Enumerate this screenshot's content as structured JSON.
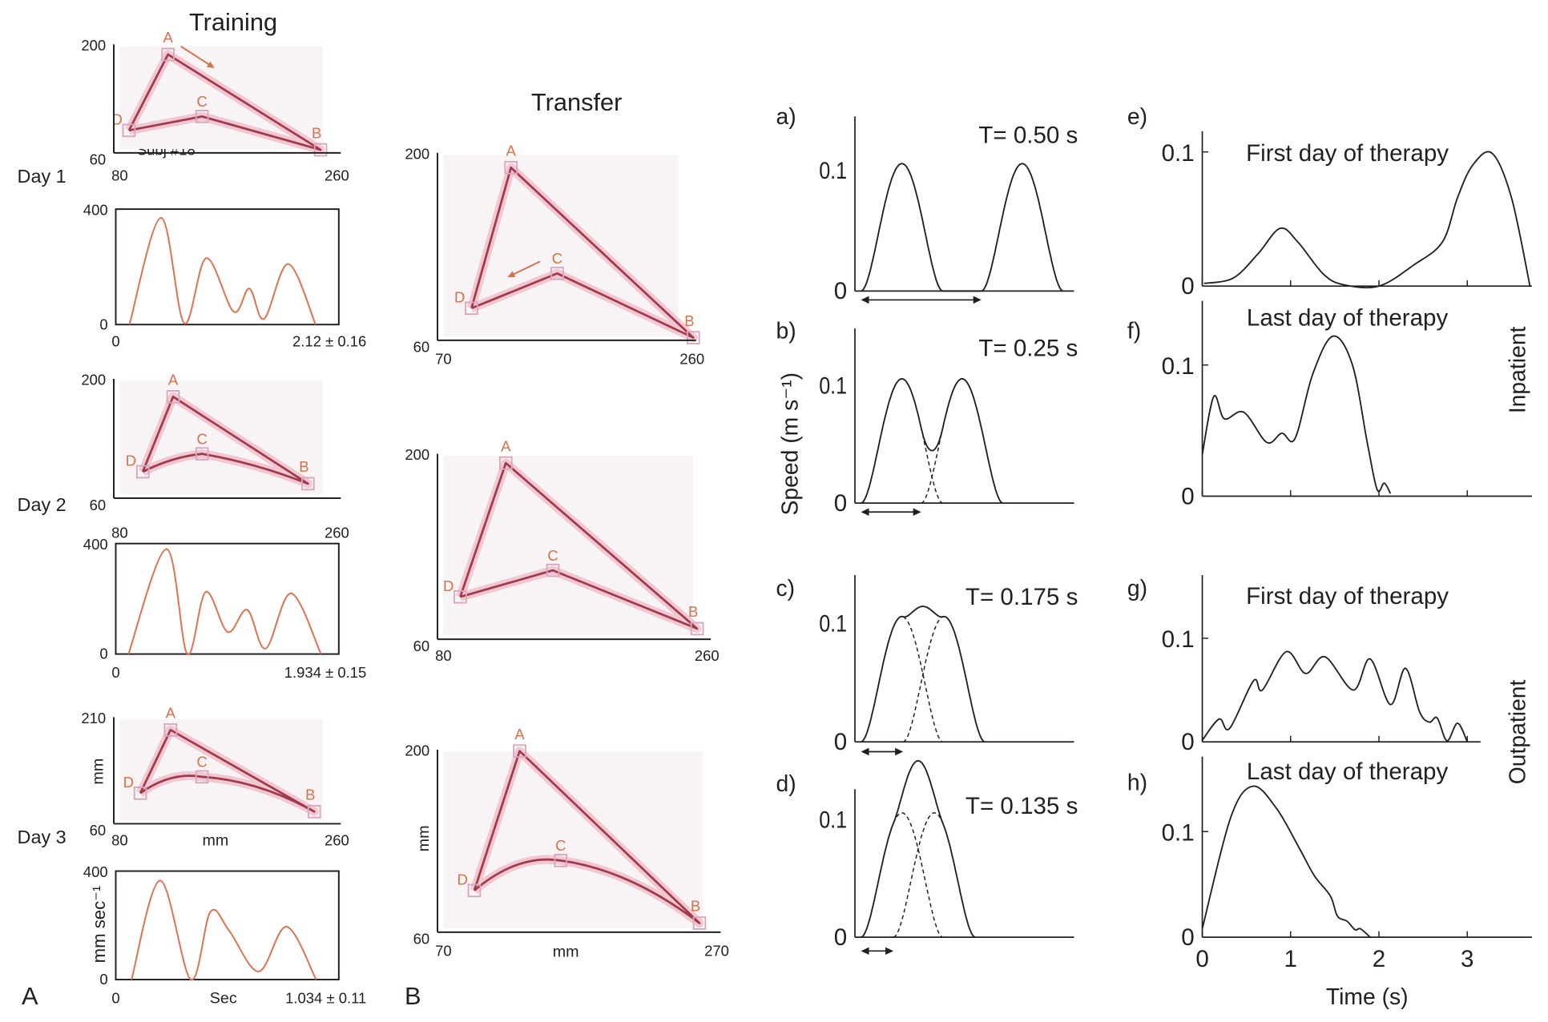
{
  "figure": {
    "training_title": "Training",
    "transfer_title": "Transfer",
    "panel_A": "A",
    "panel_B": "B",
    "day_labels": [
      "Day 1",
      "Day 2",
      "Day 3"
    ],
    "subject_label": "Subj #18",
    "mm_label": "mm",
    "speed_units_label": "mm sec⁻¹",
    "sec_label": "Sec",
    "speed_ylabel": "Speed (m s⁻¹)",
    "time_xlabel": "Time (s)",
    "inpatient_label": "Inpatient",
    "outpatient_label": "Outpatient"
  },
  "colors": {
    "trajectory": "#a03a4a",
    "trajectory_glow": "#eba2b4",
    "velocity": "#e07050",
    "point_label": "#d9704a",
    "ink": "#231f20"
  },
  "chart_data": [
    {
      "id": "training-day1-trajectory",
      "type": "line",
      "group": "Training",
      "day": "Day 1",
      "xlim": [
        80,
        260
      ],
      "ylim": [
        60,
        200
      ],
      "xticks": [
        80,
        260
      ],
      "yticks": [
        60,
        200
      ],
      "points": {
        "A": [
          123,
          187
        ],
        "B": [
          244,
          64
        ],
        "C": [
          150,
          107
        ],
        "D": [
          92,
          89
        ]
      },
      "order": [
        "D",
        "A",
        "B",
        "C",
        "D"
      ],
      "direction": "A-to-B"
    },
    {
      "id": "training-day1-speed",
      "type": "line",
      "xlim": [
        0,
        2.12
      ],
      "ylim": [
        0,
        400
      ],
      "xticks": [
        0
      ],
      "yticks": [
        0,
        400
      ],
      "readout": "2.12 ± 0.16",
      "x": [
        0.13,
        0.43,
        0.65,
        0.86,
        1.12,
        1.27,
        1.41,
        1.64,
        1.9
      ],
      "y": [
        0,
        370,
        5,
        230,
        45,
        125,
        20,
        210,
        0
      ]
    },
    {
      "id": "training-day2-trajectory",
      "type": "line",
      "group": "Training",
      "day": "Day 2",
      "xlim": [
        80,
        260
      ],
      "ylim": [
        60,
        200
      ],
      "xticks": [
        80,
        260
      ],
      "yticks": [
        60,
        200
      ],
      "points": {
        "A": [
          127,
          179
        ],
        "B": [
          234,
          77
        ],
        "C": [
          150,
          112
        ],
        "D": [
          103,
          91
        ]
      },
      "order": [
        "D",
        "A",
        "B",
        "C",
        "D"
      ]
    },
    {
      "id": "training-day2-speed",
      "type": "line",
      "xlim": [
        0,
        1.934
      ],
      "ylim": [
        0,
        400
      ],
      "xticks": [
        0
      ],
      "yticks": [
        0,
        400
      ],
      "readout": "1.934 ± 0.15",
      "x": [
        0.11,
        0.44,
        0.62,
        0.78,
        0.97,
        1.14,
        1.3,
        1.52,
        1.78
      ],
      "y": [
        0,
        380,
        0,
        225,
        80,
        160,
        20,
        220,
        0
      ]
    },
    {
      "id": "training-day3-trajectory",
      "type": "line",
      "group": "Training",
      "day": "Day 3",
      "xlim": [
        80,
        260
      ],
      "ylim": [
        60,
        210
      ],
      "xticks": [
        80,
        260
      ],
      "yticks": [
        60,
        210
      ],
      "xlabel": "mm",
      "ylabel": "mm",
      "points": {
        "A": [
          125,
          192
        ],
        "B": [
          239,
          77
        ],
        "C": [
          150,
          126
        ],
        "D": [
          101,
          103
        ]
      },
      "order": [
        "D",
        "A",
        "B",
        "C",
        "D"
      ]
    },
    {
      "id": "training-day3-speed",
      "type": "line",
      "xlim": [
        0,
        1.034
      ],
      "ylim": [
        0,
        400
      ],
      "xticks": [
        0
      ],
      "yticks": [
        0,
        400
      ],
      "readout": "1.034 ± 0.11",
      "xlabel": "Sec",
      "ylabel": "mm sec⁻¹",
      "x": [
        0.073,
        0.206,
        0.348,
        0.439,
        0.526,
        0.663,
        0.792,
        0.929
      ],
      "y": [
        0,
        365,
        0,
        250,
        180,
        30,
        195,
        0
      ]
    },
    {
      "id": "transfer-1-trajectory",
      "type": "line",
      "group": "Transfer",
      "xlim": [
        70,
        260
      ],
      "ylim": [
        60,
        200
      ],
      "xticks": [
        70,
        260
      ],
      "yticks": [
        60,
        200
      ],
      "points": {
        "A": [
          124,
          189
        ],
        "B": [
          258,
          62
        ],
        "C": [
          158,
          110
        ],
        "D": [
          95,
          84
        ]
      },
      "order": [
        "D",
        "A",
        "B",
        "C",
        "D"
      ],
      "direction": "C-to-D"
    },
    {
      "id": "transfer-2-trajectory",
      "type": "line",
      "group": "Transfer",
      "xlim": [
        80,
        260
      ],
      "ylim": [
        60,
        200
      ],
      "xticks": [
        80,
        260
      ],
      "yticks": [
        60,
        200
      ],
      "points": {
        "A": [
          125,
          193
        ],
        "B": [
          251,
          68
        ],
        "C": [
          156,
          112
        ],
        "D": [
          95,
          92
        ]
      },
      "order": [
        "D",
        "A",
        "B",
        "C",
        "D"
      ]
    },
    {
      "id": "transfer-3-trajectory",
      "type": "line",
      "group": "Transfer",
      "xlim": [
        70,
        270
      ],
      "ylim": [
        60,
        200
      ],
      "xticks": [
        70,
        270
      ],
      "yticks": [
        60,
        200
      ],
      "xlabel": "mm",
      "ylabel": "mm",
      "points": {
        "A": [
          128,
          199
        ],
        "B": [
          255,
          67
        ],
        "C": [
          157,
          115
        ],
        "D": [
          96,
          92
        ]
      },
      "order": [
        "D",
        "A",
        "B",
        "C",
        "D"
      ]
    },
    {
      "id": "a",
      "label": "a)",
      "type": "line",
      "T_label": "T= 0.50 s",
      "T": 0.5,
      "onset": 0.025,
      "duration": 0.34,
      "peak": 0.105,
      "yticks": [
        0,
        0.1
      ]
    },
    {
      "id": "b",
      "label": "b)",
      "type": "line",
      "T_label": "T= 0.25 s",
      "T": 0.25,
      "onset": 0.025,
      "duration": 0.34,
      "peak": 0.105,
      "yticks": [
        0,
        0.1
      ]
    },
    {
      "id": "c",
      "label": "c)",
      "type": "line",
      "T_label": "T= 0.175 s",
      "T": 0.175,
      "onset": 0.025,
      "duration": 0.34,
      "peak": 0.105,
      "yticks": [
        0,
        0.1
      ]
    },
    {
      "id": "d",
      "label": "d)",
      "type": "line",
      "T_label": "T= 0.135 s",
      "T": 0.135,
      "onset": 0.025,
      "duration": 0.34,
      "peak": 0.105,
      "yticks": [
        0,
        0.1
      ]
    },
    {
      "id": "e",
      "label": "e)",
      "type": "line",
      "title": "First day of therapy",
      "yticks": [
        0,
        0.1
      ],
      "xticks": [
        0,
        1,
        2,
        3
      ],
      "x": [
        0.02,
        0.35,
        0.63,
        0.88,
        1.08,
        1.37,
        1.6,
        2.0,
        2.4,
        2.72,
        2.89,
        3.06,
        3.28,
        3.5,
        3.71
      ],
      "y": [
        0.002,
        0.006,
        0.024,
        0.043,
        0.033,
        0.009,
        0.001,
        0,
        0.016,
        0.033,
        0.066,
        0.09,
        0.099,
        0.066,
        0
      ]
    },
    {
      "id": "f",
      "label": "f)",
      "type": "line",
      "title": "Last day of therapy",
      "yticks": [
        0,
        0.1
      ],
      "xticks": [
        0,
        1,
        2,
        3
      ],
      "x": [
        0,
        0.13,
        0.25,
        0.47,
        0.73,
        0.9,
        1.05,
        1.25,
        1.48,
        1.7,
        1.87,
        1.98,
        2.06,
        2.13
      ],
      "y": [
        0.032,
        0.076,
        0.059,
        0.064,
        0.041,
        0.048,
        0.044,
        0.093,
        0.122,
        0.1,
        0.04,
        0.005,
        0.01,
        0.002
      ]
    },
    {
      "id": "g",
      "label": "g)",
      "type": "line",
      "title": "First day of therapy",
      "yticks": [
        0,
        0.1
      ],
      "xticks": [
        0,
        1,
        2,
        3
      ],
      "x": [
        0,
        0.19,
        0.31,
        0.58,
        0.68,
        0.95,
        1.17,
        1.39,
        1.71,
        1.9,
        2.13,
        2.3,
        2.46,
        2.57,
        2.66,
        2.77,
        2.89,
        3.0
      ],
      "y": [
        0.0015,
        0.022,
        0.013,
        0.059,
        0.05,
        0.087,
        0.066,
        0.082,
        0.05,
        0.08,
        0.036,
        0.071,
        0.029,
        0.019,
        0.023,
        0.001,
        0.018,
        0
      ]
    },
    {
      "id": "h",
      "label": "h)",
      "type": "line",
      "title": "Last day of therapy",
      "yticks": [
        0,
        0.1
      ],
      "xticks": [
        0,
        1,
        2,
        3
      ],
      "xlabel": "Time (s)",
      "x": [
        0,
        0.32,
        0.57,
        0.84,
        1.1,
        1.27,
        1.45,
        1.53,
        1.64,
        1.73,
        1.79,
        1.9
      ],
      "y": [
        0.008,
        0.113,
        0.143,
        0.122,
        0.084,
        0.058,
        0.039,
        0.02,
        0.015,
        0.007,
        0.008,
        0
      ]
    }
  ]
}
